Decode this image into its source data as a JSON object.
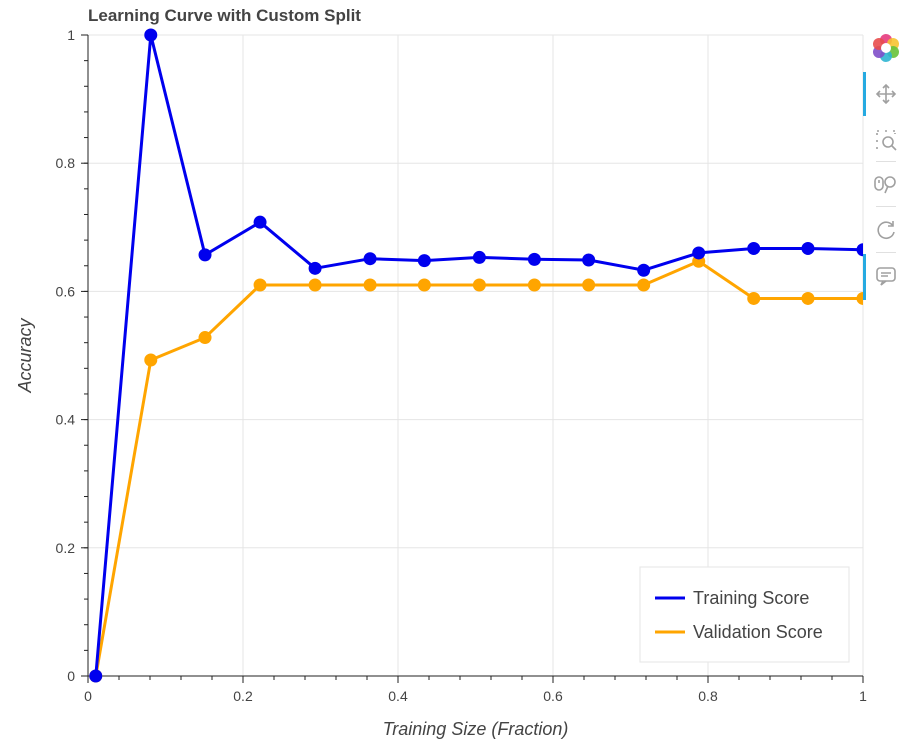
{
  "chart_data": {
    "type": "line",
    "title": "Learning Curve with Custom Split",
    "xlabel": "Training Size (Fraction)",
    "ylabel": "Accuracy",
    "xlim": [
      0,
      1
    ],
    "ylim": [
      0,
      1
    ],
    "xticks": [
      {
        "v": 0,
        "label": "0"
      },
      {
        "v": 0.2,
        "label": "0.2"
      },
      {
        "v": 0.4,
        "label": "0.4"
      },
      {
        "v": 0.6,
        "label": "0.6"
      },
      {
        "v": 0.8,
        "label": "0.8"
      },
      {
        "v": 1,
        "label": "1"
      }
    ],
    "yticks": [
      {
        "v": 0,
        "label": "0"
      },
      {
        "v": 0.2,
        "label": "0.2"
      },
      {
        "v": 0.4,
        "label": "0.4"
      },
      {
        "v": 0.6,
        "label": "0.6"
      },
      {
        "v": 0.8,
        "label": "0.8"
      },
      {
        "v": 1,
        "label": "1"
      }
    ],
    "grid": true,
    "legend_position": "bottom-right",
    "x": [
      0.01,
      0.081,
      0.151,
      0.222,
      0.293,
      0.364,
      0.434,
      0.505,
      0.576,
      0.646,
      0.717,
      0.788,
      0.859,
      0.929,
      1.0
    ],
    "series": [
      {
        "name": "Training Score",
        "color": "#0000ee",
        "values": [
          0.0,
          1.0,
          0.657,
          0.708,
          0.636,
          0.651,
          0.648,
          0.653,
          0.65,
          0.649,
          0.633,
          0.66,
          0.667,
          0.667,
          0.665
        ]
      },
      {
        "name": "Validation Score",
        "color": "#ffa500",
        "values": [
          0.0,
          0.493,
          0.528,
          0.61,
          0.61,
          0.61,
          0.61,
          0.61,
          0.61,
          0.61,
          0.61,
          0.647,
          0.589,
          0.589,
          0.589
        ]
      }
    ]
  },
  "toolbar": {
    "tools": [
      "bokeh-logo-icon",
      "pan-icon",
      "box-zoom-icon",
      "wheel-zoom-icon",
      "reset-icon",
      "hover-icon"
    ]
  }
}
